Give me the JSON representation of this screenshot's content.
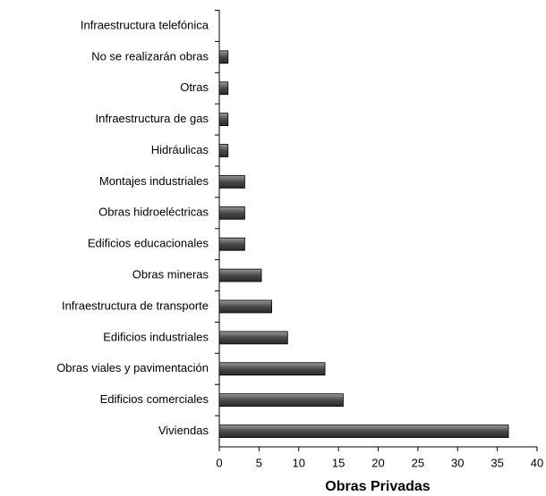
{
  "chart_data": {
    "type": "barh",
    "x_label": "Obras Privadas",
    "categories": [
      "Infraestructura telefónica",
      "No se realizarán obras",
      "Otras",
      "Infraestructura de gas",
      "Hidráulicas",
      "Montajes industriales",
      "Obras hidroeléctricas",
      "Edificios educacionales",
      "Obras mineras",
      "Infraestructura de transporte",
      "Edificios industriales",
      "Obras viales y pavimentación",
      "Edificios comerciales",
      "Viviendas"
    ],
    "values": [
      0,
      1.1,
      1.1,
      1.1,
      1.1,
      3.2,
      3.2,
      3.2,
      5.3,
      6.6,
      8.6,
      13.3,
      15.6,
      36.4
    ],
    "color": "#5a5a5a",
    "xlim": [
      0,
      40
    ],
    "xticks": [
      0,
      5,
      10,
      15,
      20,
      25,
      30,
      35,
      40
    ]
  }
}
